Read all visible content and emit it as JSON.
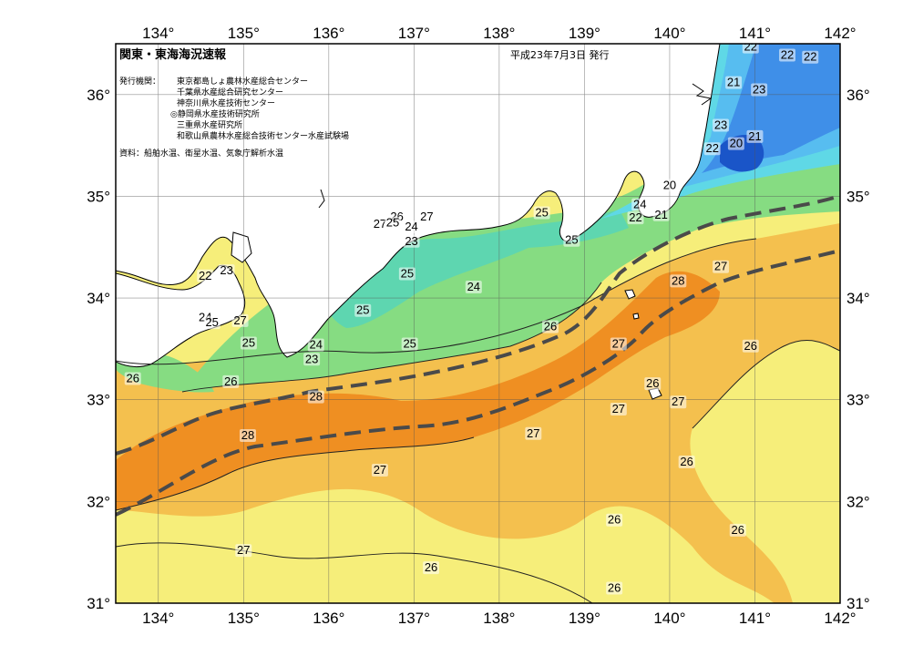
{
  "title": "関東・東海海況速報",
  "issue_date": "平成23年7月3日 発行",
  "publishers_label": "発行機関：",
  "publishers": [
    "東京都島しょ農林水産総合センター",
    "千葉県水産総合研究センター",
    "神奈川県水産技術センター",
    "◎静岡県水産技術研究所",
    "三重県水産研究所",
    "和歌山県農林水産総合技術センター水産試験場"
  ],
  "data_source": "資料：船舶水温、衛星水温、気象庁解析水温",
  "longitude_ticks": [
    "134°",
    "135°",
    "136°",
    "137°",
    "138°",
    "139°",
    "140°",
    "141°",
    "142°"
  ],
  "latitude_ticks_left": [
    "36°",
    "35°",
    "34°",
    "33°",
    "32°",
    "31°"
  ],
  "latitude_ticks_right": [
    "36°",
    "35°",
    "34°",
    "33°",
    "32°",
    "31°"
  ],
  "colors": {
    "t20": "#1a55c8",
    "t21": "#3f8fe8",
    "t22": "#57bdf0",
    "t23": "#5fd8e6",
    "t24": "#5ed6b0",
    "t25": "#86dc82",
    "t26": "#f6ee7a",
    "t27": "#f4c04e",
    "t28": "#ef8f22",
    "land": "#ffffff",
    "kuroshio_axis": "#4a4a4a"
  },
  "sst_labels": [
    {
      "v": "22",
      "lon": 140.95,
      "lat": 36.45
    },
    {
      "v": "22",
      "lon": 141.38,
      "lat": 36.37
    },
    {
      "v": "22",
      "lon": 141.65,
      "lat": 36.35
    },
    {
      "v": "21",
      "lon": 140.75,
      "lat": 36.1
    },
    {
      "v": "23",
      "lon": 141.05,
      "lat": 36.03
    },
    {
      "v": "23",
      "lon": 140.6,
      "lat": 35.68
    },
    {
      "v": "20",
      "lon": 140.78,
      "lat": 35.5
    },
    {
      "v": "21",
      "lon": 141.0,
      "lat": 35.57
    },
    {
      "v": "22",
      "lon": 140.5,
      "lat": 35.45
    },
    {
      "v": "20",
      "lon": 140.0,
      "lat": 35.09
    },
    {
      "v": "24",
      "lon": 139.65,
      "lat": 34.9
    },
    {
      "v": "22",
      "lon": 139.6,
      "lat": 34.77
    },
    {
      "v": "21",
      "lon": 139.9,
      "lat": 34.8
    },
    {
      "v": "25",
      "lon": 138.5,
      "lat": 34.82
    },
    {
      "v": "25",
      "lon": 138.85,
      "lat": 34.55
    },
    {
      "v": "26",
      "lon": 136.8,
      "lat": 34.78
    },
    {
      "v": "27",
      "lon": 137.15,
      "lat": 34.78
    },
    {
      "v": "27",
      "lon": 136.6,
      "lat": 34.71
    },
    {
      "v": "25",
      "lon": 136.75,
      "lat": 34.72
    },
    {
      "v": "24",
      "lon": 136.97,
      "lat": 34.68
    },
    {
      "v": "23",
      "lon": 136.97,
      "lat": 34.54
    },
    {
      "v": "25",
      "lon": 136.92,
      "lat": 34.22
    },
    {
      "v": "24",
      "lon": 137.7,
      "lat": 34.09
    },
    {
      "v": "25",
      "lon": 136.4,
      "lat": 33.86
    },
    {
      "v": "24",
      "lon": 135.85,
      "lat": 33.52
    },
    {
      "v": "25",
      "lon": 136.95,
      "lat": 33.53
    },
    {
      "v": "23",
      "lon": 135.8,
      "lat": 33.38
    },
    {
      "v": "23",
      "lon": 134.8,
      "lat": 34.25
    },
    {
      "v": "22",
      "lon": 134.55,
      "lat": 34.2
    },
    {
      "v": "24",
      "lon": 134.55,
      "lat": 33.79
    },
    {
      "v": "25",
      "lon": 134.63,
      "lat": 33.74
    },
    {
      "v": "27",
      "lon": 134.96,
      "lat": 33.76
    },
    {
      "v": "25",
      "lon": 135.06,
      "lat": 33.54
    },
    {
      "v": "26",
      "lon": 133.7,
      "lat": 33.19
    },
    {
      "v": "26",
      "lon": 134.85,
      "lat": 33.16
    },
    {
      "v": "28",
      "lon": 135.85,
      "lat": 33.01
    },
    {
      "v": "26",
      "lon": 138.6,
      "lat": 33.7
    },
    {
      "v": "27",
      "lon": 139.4,
      "lat": 33.53
    },
    {
      "v": "28",
      "lon": 140.1,
      "lat": 34.15
    },
    {
      "v": "27",
      "lon": 140.6,
      "lat": 34.29
    },
    {
      "v": "26",
      "lon": 140.95,
      "lat": 33.51
    },
    {
      "v": "26",
      "lon": 139.8,
      "lat": 33.14
    },
    {
      "v": "27",
      "lon": 140.1,
      "lat": 32.96
    },
    {
      "v": "27",
      "lon": 139.4,
      "lat": 32.89
    },
    {
      "v": "28",
      "lon": 135.05,
      "lat": 32.63
    },
    {
      "v": "27",
      "lon": 138.4,
      "lat": 32.65
    },
    {
      "v": "27",
      "lon": 136.6,
      "lat": 32.29
    },
    {
      "v": "26",
      "lon": 140.2,
      "lat": 32.37
    },
    {
      "v": "26",
      "lon": 139.35,
      "lat": 31.8
    },
    {
      "v": "26",
      "lon": 140.8,
      "lat": 31.7
    },
    {
      "v": "27",
      "lon": 135.0,
      "lat": 31.5
    },
    {
      "v": "26",
      "lon": 137.2,
      "lat": 31.33
    },
    {
      "v": "26",
      "lon": 139.35,
      "lat": 31.13
    }
  ]
}
